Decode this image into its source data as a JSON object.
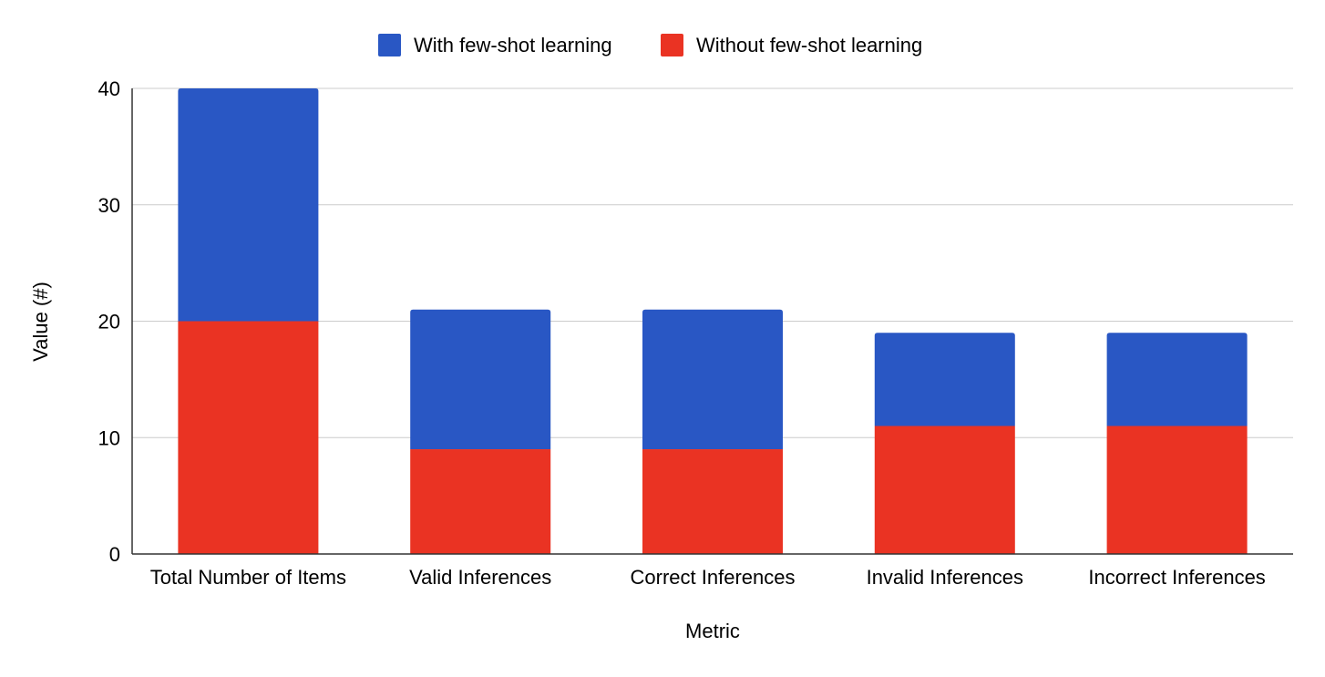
{
  "chart_data": {
    "type": "bar",
    "stacked": true,
    "title": "",
    "xlabel": "Metric",
    "ylabel": "Value (#)",
    "ylim": [
      0,
      40
    ],
    "yticks": [
      0,
      10,
      20,
      30,
      40
    ],
    "grid": true,
    "legend_position": "top-center",
    "categories": [
      "Total Number of Items",
      "Valid Inferences",
      "Correct Inferences",
      "Invalid Inferences",
      "Incorrect Inferences"
    ],
    "series": [
      {
        "name": "Without few-shot learning",
        "color": "#ea3323",
        "values": [
          20,
          9,
          9,
          11,
          11
        ]
      },
      {
        "name": "With few-shot learning",
        "color": "#2957c4",
        "values": [
          20,
          12,
          12,
          8,
          8
        ]
      }
    ]
  }
}
